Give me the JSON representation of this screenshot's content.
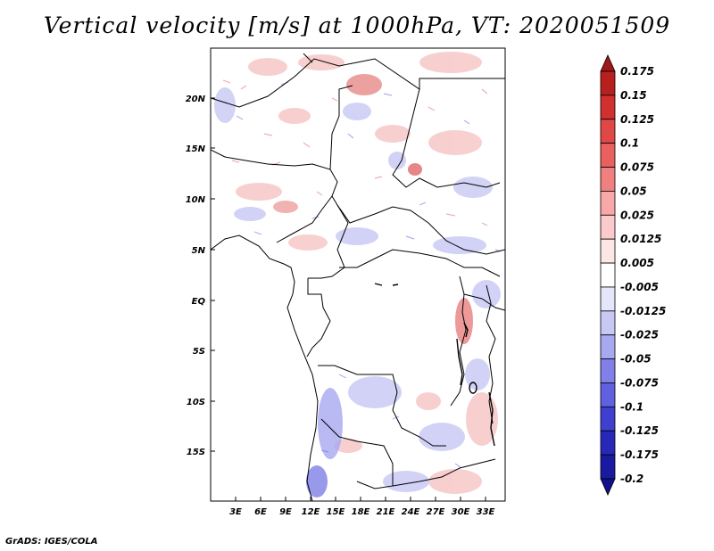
{
  "title": "Vertical velocity [m/s] at 1000hPa, VT: 2020051509",
  "footer": "GrADS: IGES/COLA",
  "lat_labels": [
    "20N",
    "15N",
    "10N",
    "5N",
    "EQ",
    "5S",
    "10S",
    "15S"
  ],
  "lon_labels": [
    "3E",
    "6E",
    "9E",
    "12E",
    "15E",
    "18E",
    "21E",
    "24E",
    "27E",
    "30E",
    "33E"
  ],
  "colorbar": {
    "levels": [
      "0.175",
      "0.15",
      "0.125",
      "0.1",
      "0.075",
      "0.05",
      "0.025",
      "0.0125",
      "0.005",
      "-0.005",
      "-0.0125",
      "-0.025",
      "-0.05",
      "-0.075",
      "-0.1",
      "-0.125",
      "-0.175",
      "-0.2"
    ],
    "colors": [
      "#a01818",
      "#b82020",
      "#d03030",
      "#e04848",
      "#e86060",
      "#f08080",
      "#f8a8a8",
      "#fbcaca",
      "#fde6e6",
      "#ffffff",
      "#e6e6fb",
      "#c8c8f4",
      "#a8a8f0",
      "#8080e8",
      "#6060e0",
      "#4040d0",
      "#2828b8",
      "#1a1aa0",
      "#10108a"
    ]
  }
}
